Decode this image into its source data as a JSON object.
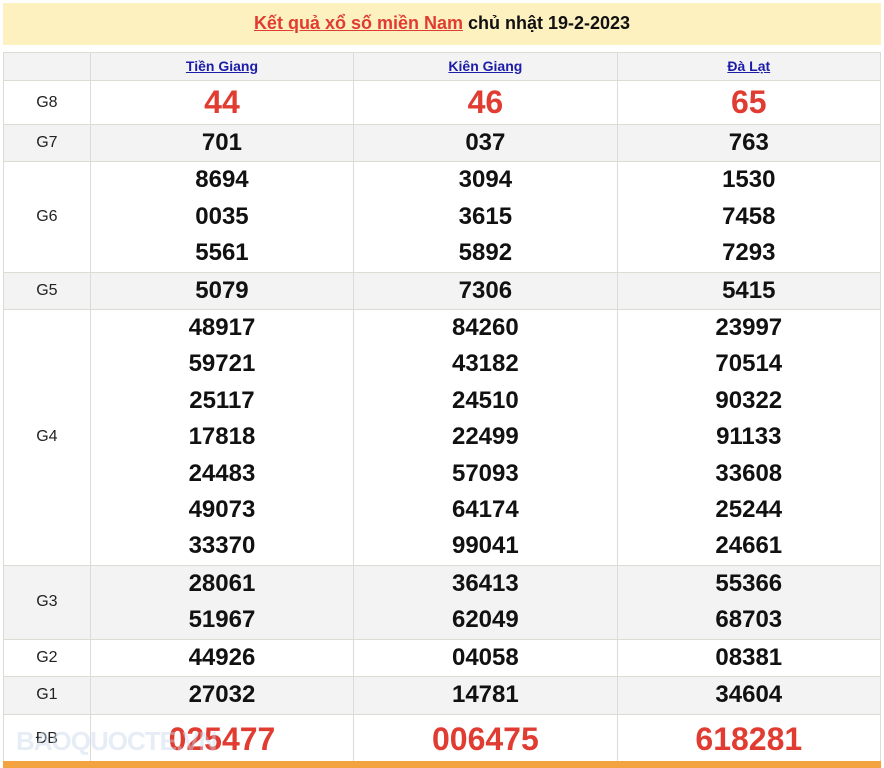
{
  "title": {
    "link": "Kết quả xổ số miền Nam",
    "rest": " chủ nhật 19-2-2023"
  },
  "provinces": [
    "Tiền Giang",
    "Kiên Giang",
    "Đà Lạt"
  ],
  "rows": [
    {
      "label": "G8",
      "values": [
        [
          "44"
        ],
        [
          "46"
        ],
        [
          "65"
        ]
      ],
      "big": true
    },
    {
      "label": "G7",
      "values": [
        [
          "701"
        ],
        [
          "037"
        ],
        [
          "763"
        ]
      ]
    },
    {
      "label": "G6",
      "values": [
        [
          "8694",
          "0035",
          "5561"
        ],
        [
          "3094",
          "3615",
          "5892"
        ],
        [
          "1530",
          "7458",
          "7293"
        ]
      ]
    },
    {
      "label": "G5",
      "values": [
        [
          "5079"
        ],
        [
          "7306"
        ],
        [
          "5415"
        ]
      ]
    },
    {
      "label": "G4",
      "values": [
        [
          "48917",
          "59721",
          "25117",
          "17818",
          "24483",
          "49073",
          "33370"
        ],
        [
          "84260",
          "43182",
          "24510",
          "22499",
          "57093",
          "64174",
          "99041"
        ],
        [
          "23997",
          "70514",
          "90322",
          "91133",
          "33608",
          "25244",
          "24661"
        ]
      ]
    },
    {
      "label": "G3",
      "values": [
        [
          "28061",
          "51967"
        ],
        [
          "36413",
          "62049"
        ],
        [
          "55366",
          "68703"
        ]
      ]
    },
    {
      "label": "G2",
      "values": [
        [
          "44926"
        ],
        [
          "04058"
        ],
        [
          "08381"
        ]
      ]
    },
    {
      "label": "G1",
      "values": [
        [
          "27032"
        ],
        [
          "14781"
        ],
        [
          "34604"
        ]
      ]
    },
    {
      "label": "ĐB",
      "values": [
        [
          "025477"
        ],
        [
          "006475"
        ],
        [
          "618281"
        ]
      ],
      "big": true
    }
  ],
  "watermark": "BAOQUOCTE.VN",
  "colors": {
    "accent": "#e03c31",
    "link": "#1c1ca8",
    "title_bg": "#fdf1c0",
    "footer_bar": "#f3a33f"
  }
}
